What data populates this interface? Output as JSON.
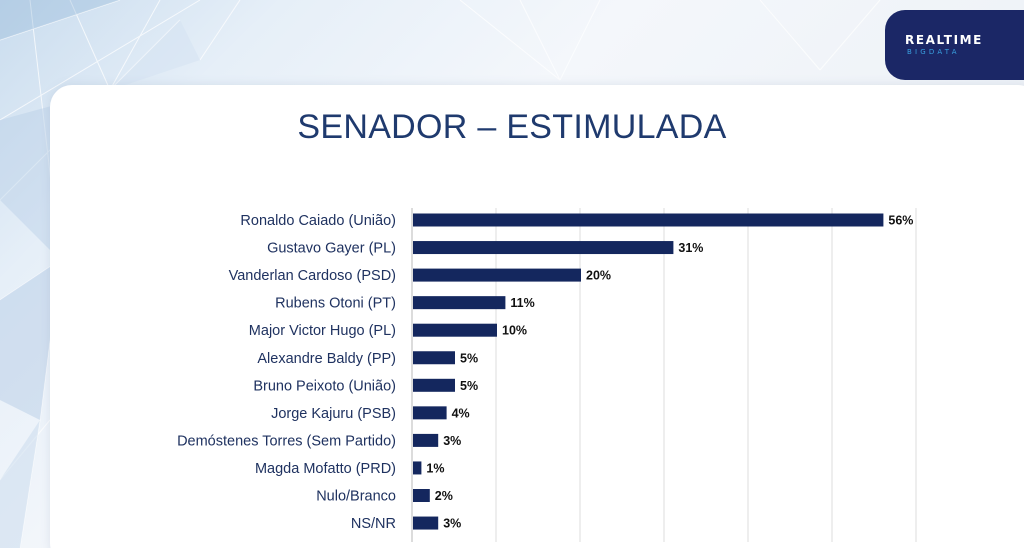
{
  "brand": {
    "name": "REALTIME",
    "sub": "BIGDATA",
    "color_dark": "#1b2766",
    "color_accent": "#3aa0e0"
  },
  "chart_data": {
    "type": "bar",
    "orientation": "horizontal",
    "title": "SENADOR – ESTIMULADA",
    "categories": [
      "Ronaldo Caiado (União)",
      "Gustavo Gayer (PL)",
      "Vanderlan Cardoso (PSD)",
      "Rubens Otoni (PT)",
      "Major Victor Hugo (PL)",
      "Alexandre Baldy (PP)",
      "Bruno Peixoto (União)",
      "Jorge Kajuru (PSB)",
      "Demóstenes Torres (Sem Partido)",
      "Magda Mofatto (PRD)",
      "Nulo/Branco",
      "NS/NR"
    ],
    "values": [
      56,
      31,
      20,
      11,
      10,
      5,
      5,
      4,
      3,
      1,
      2,
      3
    ],
    "value_labels": [
      "56%",
      "31%",
      "20%",
      "11%",
      "10%",
      "5%",
      "5%",
      "4%",
      "3%",
      "1%",
      "2%",
      "3%"
    ],
    "unit": "%",
    "xlim": [
      0,
      60
    ],
    "grid": true,
    "bar_color": "#14275e",
    "xlabel": "",
    "ylabel": ""
  }
}
